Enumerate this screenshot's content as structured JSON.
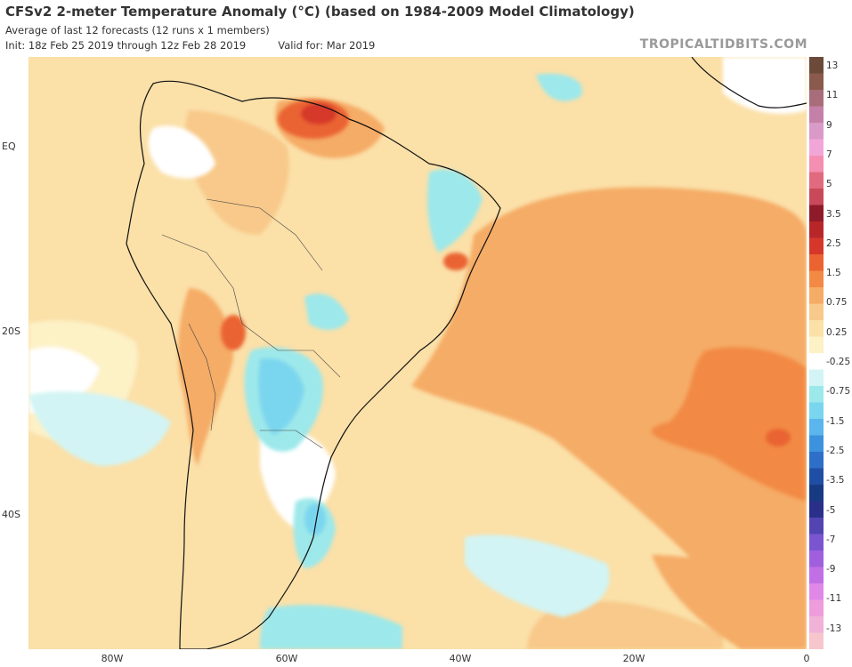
{
  "header": {
    "title": "CFSv2 2-meter Temperature Anomaly (°C) (based on 1984-2009 Model Climatology)",
    "subtitle": "Average of last 12 forecasts (12 runs x 1 members)",
    "init": "Init: 18z Feb 25 2019 through 12z Feb 28 2019",
    "valid": "Valid for: Mar 2019",
    "credit": "TROPICALTIDBITS.COM"
  },
  "axes": {
    "lat_labels": [
      "EQ",
      "20S",
      "40S"
    ],
    "lon_labels": [
      "80W",
      "60W",
      "40W",
      "20W",
      "0"
    ]
  },
  "colorbar": {
    "labels": [
      "13",
      "11",
      "9",
      "7",
      "5",
      "3.5",
      "2.5",
      "1.5",
      "0.75",
      "0.25",
      "-0.25",
      "-0.75",
      "-1.5",
      "-2.5",
      "-3.5",
      "-5",
      "-7",
      "-9",
      "-11",
      "-13"
    ],
    "colors": [
      "#6b4a3a",
      "#8a5a4c",
      "#a86d7a",
      "#c480a8",
      "#d99ac8",
      "#f2a6d8",
      "#f48fb1",
      "#e06a7e",
      "#c9495a",
      "#8e1a2a",
      "#b8262a",
      "#d6372b",
      "#ea6330",
      "#f28a45",
      "#f5ac66",
      "#f8c98a",
      "#fbe0a8",
      "#fdf1c6",
      "#ffffff",
      "#d2f4f4",
      "#9de8ea",
      "#7ad6ee",
      "#5ab6ec",
      "#3d92de",
      "#2e6fc8",
      "#1f4fa4",
      "#173a82",
      "#2a2f8a",
      "#5245b2",
      "#7b55d0",
      "#a060de",
      "#c070e4",
      "#e088e8",
      "#ee9cdc",
      "#f2b2d8",
      "#f6c6cc"
    ]
  },
  "map": {
    "variable": "2-meter temperature anomaly",
    "unit": "°C",
    "region": "South America and South Atlantic"
  }
}
